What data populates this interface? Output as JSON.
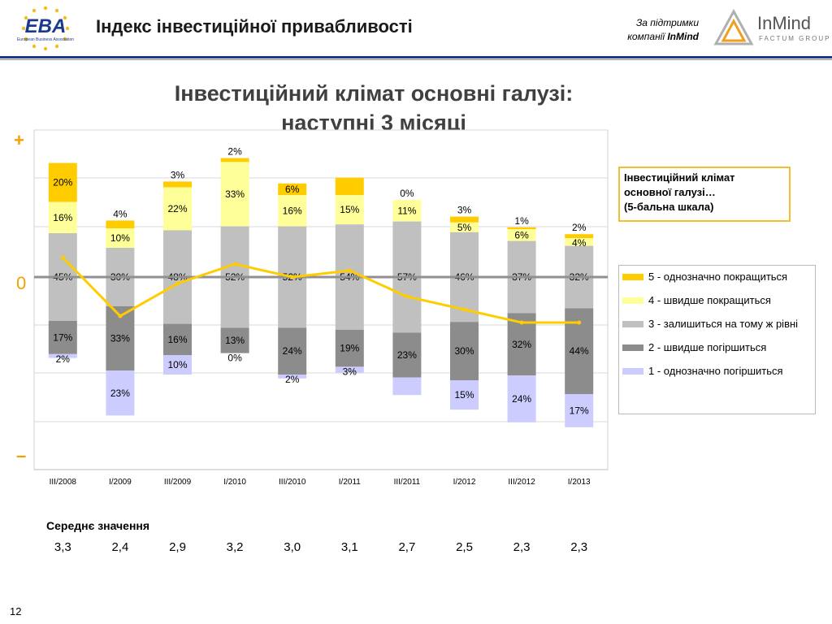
{
  "header": {
    "title": "Індекс інвестиційної привабливості",
    "support_line1": "За підтримки",
    "support_line2_prefix": "компанії ",
    "support_line2_brand": "InMind",
    "eba_text": "EBA",
    "eba_sub": "European Business Association",
    "inmind_name": "InMind",
    "inmind_sub": "FACTUM GROUP"
  },
  "slide_title_line1": "Інвестиційний клімат основні галузі:",
  "slide_title_line2": "наступні 3 місяці",
  "plus_sign": "+",
  "zero_sign": "0",
  "minus_sign": "–",
  "info_box": {
    "line1": "Інвестиційний клімат",
    "line2": "основної галузі…",
    "line3": "(5-бальна шкала)"
  },
  "colors": {
    "c5": "#ffcc00",
    "c4": "#ffff99",
    "c3": "#c0c0c0",
    "c2": "#8c8c8c",
    "c1": "#ccccff",
    "mean_line": "#ffcc00"
  },
  "chart_data": {
    "type": "bar",
    "stacked": true,
    "categories": [
      "III/2008",
      "I/2009",
      "III/2009",
      "I/2010",
      "III/2010",
      "I/2011",
      "III/2011",
      "I/2012",
      "III/2012",
      "I/2013"
    ],
    "series": [
      {
        "name": "5 - однозначно покращиться",
        "color": "#ffcc00",
        "values": [
          20,
          4,
          3,
          2,
          6,
          9,
          0,
          3,
          1,
          2
        ],
        "labels": [
          "20%",
          "4%",
          "3%",
          "2%",
          "6%",
          "",
          "0%",
          "3%",
          "1%",
          "2%"
        ]
      },
      {
        "name": "4 - швидше покращиться",
        "color": "#ffff99",
        "values": [
          16,
          10,
          22,
          33,
          16,
          15,
          11,
          5,
          6,
          4
        ],
        "labels": [
          "16%",
          "10%",
          "22%",
          "33%",
          "16%",
          "15%",
          "11%",
          "5%",
          "6%",
          "4%"
        ]
      },
      {
        "name": "3 - залишиться на тому ж рівні",
        "color": "#c0c0c0",
        "values": [
          45,
          30,
          48,
          52,
          52,
          54,
          57,
          46,
          37,
          32
        ],
        "labels": [
          "45%",
          "30%",
          "48%",
          "52%",
          "52%",
          "54%",
          "57%",
          "46%",
          "37%",
          "32%"
        ]
      },
      {
        "name": "2 - швидше погіршиться",
        "color": "#8c8c8c",
        "values": [
          17,
          33,
          16,
          13,
          24,
          19,
          23,
          30,
          32,
          44
        ],
        "labels": [
          "17%",
          "33%",
          "16%",
          "13%",
          "24%",
          "19%",
          "23%",
          "30%",
          "32%",
          "44%"
        ]
      },
      {
        "name": "1 - однозначно погіршиться",
        "color": "#ccccff",
        "values": [
          2,
          23,
          10,
          0,
          2,
          3,
          9,
          15,
          24,
          17
        ],
        "labels": [
          "2%",
          "23%",
          "10%",
          "0%",
          "2%",
          "3%",
          "",
          "15%",
          "24%",
          "17%"
        ]
      }
    ],
    "mean_label": "Середнє значення",
    "mean_values": [
      3.3,
      2.4,
      2.9,
      3.2,
      3.0,
      3.1,
      2.7,
      2.5,
      2.3,
      2.3
    ],
    "mean_labels": [
      "3,3",
      "2,4",
      "2,9",
      "3,2",
      "3,0",
      "3,1",
      "2,7",
      "2,5",
      "2,3",
      "2,3"
    ],
    "grid": true,
    "legend_position": "right"
  },
  "page_number": "12"
}
